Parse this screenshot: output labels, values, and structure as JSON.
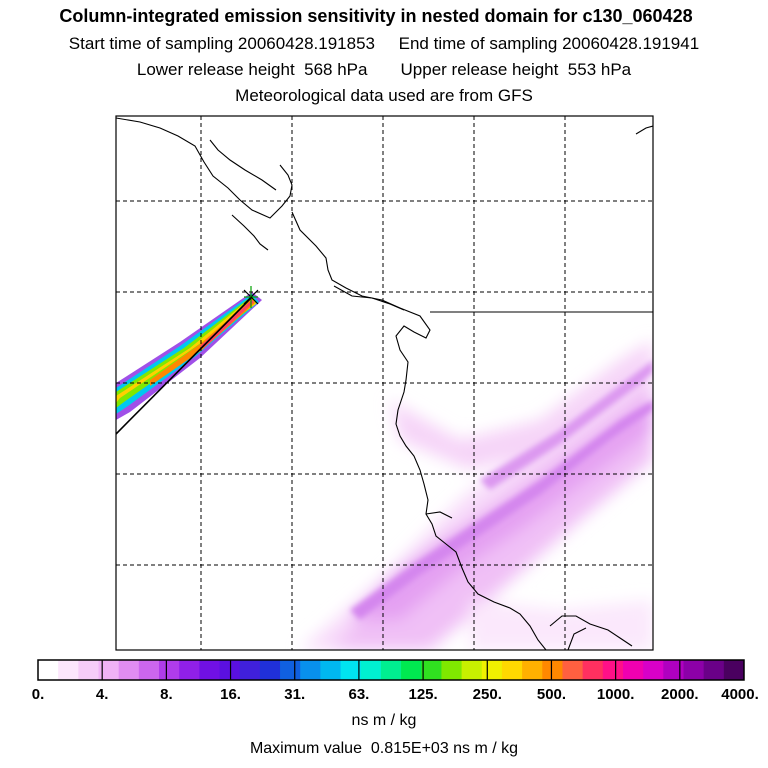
{
  "header": {
    "title": "Column-integrated emission sensitivity in nested domain for c130_060428",
    "line1": "Start time of sampling 20060428.191853     End time of sampling 20060428.191941",
    "line2": "Lower release height  568 hPa       Upper release height  553 hPa",
    "line3": "Meteorological data used are from GFS"
  },
  "footer": {
    "units": "ns m / kg",
    "max_value": "Maximum value  0.815E+03 ns m / kg"
  },
  "colors": {
    "background": "#ffffff",
    "coastline": "#000000",
    "grid": "#000000"
  },
  "chart_data": {
    "type": "heatmap",
    "title": "Column-integrated emission sensitivity in nested domain for c130_060428",
    "colorbar": {
      "unit": "ns m / kg",
      "tick_labels": [
        "0.",
        "4.",
        "8.",
        "16.",
        "31.",
        "63.",
        "125.",
        "250.",
        "500.",
        "1000.",
        "2000.",
        "4000."
      ],
      "scale": "log",
      "colors": [
        "#ffffff",
        "#fce6fc",
        "#f6ccf8",
        "#f0b2f6",
        "#e08cf2",
        "#cc66ee",
        "#b03cea",
        "#9020e8",
        "#7010e4",
        "#5a10e0",
        "#4020dc",
        "#2030d8",
        "#1060e0",
        "#0890ec",
        "#00b8f0",
        "#00e4f0",
        "#00f0d0",
        "#00ee90",
        "#00e850",
        "#30e020",
        "#80e800",
        "#c8f000",
        "#f0f000",
        "#ffd800",
        "#ffb000",
        "#ff8800",
        "#ff6040",
        "#ff3060",
        "#ff1088",
        "#f000b0",
        "#d800c8",
        "#b000c0",
        "#8c00a8",
        "#6a0088",
        "#4a0060"
      ]
    },
    "max_value": 815,
    "grid": true,
    "plume": {
      "description": "",
      "max_level": "500-1000"
    }
  }
}
